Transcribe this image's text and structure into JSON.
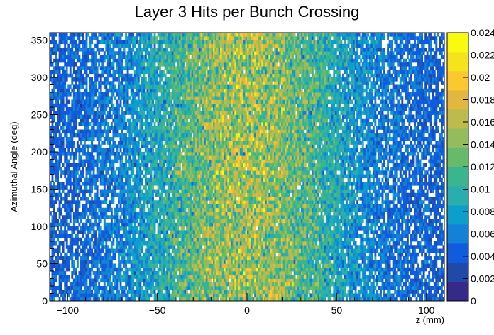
{
  "chart_data": {
    "type": "heatmap",
    "title": "Layer 3 Hits per Bunch Crossing",
    "xlabel": "z (mm)",
    "ylabel": "Azimuthal Angle (deg)",
    "xlim": [
      -110,
      110
    ],
    "ylim": [
      0,
      360
    ],
    "x_ticks": [
      -100,
      -50,
      0,
      50,
      100
    ],
    "x_tick_labels": [
      "−100",
      "−50",
      "0",
      "50",
      "100"
    ],
    "y_ticks": [
      0,
      50,
      100,
      150,
      200,
      250,
      300,
      350
    ],
    "y_tick_labels": [
      "0",
      "50",
      "100",
      "150",
      "200",
      "250",
      "300",
      "350"
    ],
    "z_range": [
      0,
      0.024
    ],
    "z_ticks": [
      0,
      0.002,
      0.004,
      0.006,
      0.008,
      0.01,
      0.012,
      0.014,
      0.016,
      0.018,
      0.02,
      0.022,
      0.024
    ],
    "z_tick_labels": [
      "0",
      "0.002",
      "0.004",
      "0.006",
      "0.008",
      "0.01",
      "0.012",
      "0.014",
      "0.016",
      "0.018",
      "0.02",
      "0.022",
      "0.024"
    ],
    "x_bins": 220,
    "y_bins": 72,
    "distribution": "uniform in azimuthal angle; peaked near z = 0 with the highest occupancy around 0.012-0.016 and sparse, partly empty bins toward |z| = 110",
    "palette": [
      "#352a87",
      "#1f4aa8",
      "#0f5cdd",
      "#1481d6",
      "#0d9fcc",
      "#2aadad",
      "#3bb58f",
      "#66bb6a",
      "#93bd5c",
      "#bdbb4b",
      "#e2b73f",
      "#fbc830",
      "#f5e41d",
      "#f9fb0e"
    ]
  }
}
